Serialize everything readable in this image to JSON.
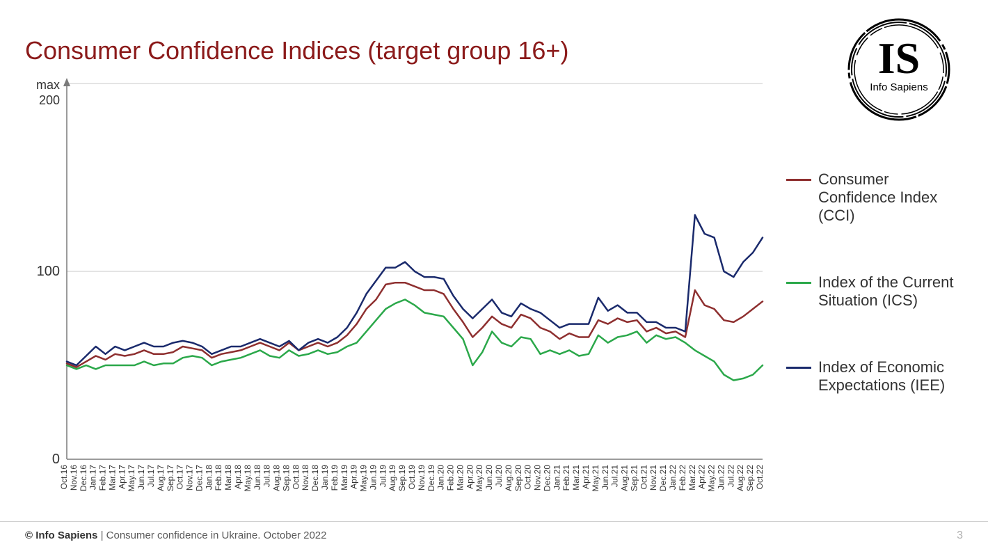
{
  "title": "Consumer Confidence Indices (target group 16+)",
  "title_color": "#8b1a1a",
  "title_fontsize": 36,
  "logo": {
    "text_top": "IS",
    "text_bottom": "Info Sapiens"
  },
  "footer": {
    "copyright_bold": "© Info Sapiens",
    "copyright_rest": " | Consumer confidence in Ukraine. October 2022",
    "page": "3"
  },
  "chart": {
    "type": "line",
    "background_color": "#ffffff",
    "grid_color": "#c8c8c8",
    "axis_color": "#7a7a7a",
    "ylim": [
      0,
      200
    ],
    "yticks": [
      0,
      100
    ],
    "ymax_label": "max\n200",
    "line_width": 2.5,
    "x_labels": [
      "Oct.16",
      "Nov.16",
      "Dec.16",
      "Jan.17",
      "Feb.17",
      "Mar.17",
      "Apr.17",
      "May.17",
      "Jun.17",
      "Jul.17",
      "Aug.17",
      "Sep.17",
      "Oct.17",
      "Nov.17",
      "Dec.17",
      "Jan.18",
      "Feb.18",
      "Mar.18",
      "Apr.18",
      "May.18",
      "Jun.18",
      "Jul.18",
      "Aug.18",
      "Sep.18",
      "Oct.18",
      "Nov.18",
      "Dec.18",
      "Jan.19",
      "Feb.19",
      "Mar.19",
      "Apr.19",
      "May.19",
      "Jun.19",
      "Jul.19",
      "Aug.19",
      "Sep.19",
      "Oct.19",
      "Nov.19",
      "Dec.19",
      "Jan.20",
      "Feb.20",
      "Mar.20",
      "Apr.20",
      "May.20",
      "Jun.20",
      "Jul.20",
      "Aug.20",
      "Sep.20",
      "Oct.20",
      "Nov.20",
      "Dec.20",
      "Jan.21",
      "Feb.21",
      "Mar.21",
      "Apr.21",
      "May.21",
      "Jun.21",
      "Jul.21",
      "Aug.21",
      "Sep.21",
      "Oct.21",
      "Nov.21",
      "Dec.21",
      "Jan.22",
      "Feb.22",
      "Mar.22",
      "Apr.22",
      "May.22",
      "Jun.22",
      "Jul.22",
      "Aug.22",
      "Sep.22",
      "Oct.22"
    ],
    "series": [
      {
        "name": "Consumer Confidence Index (CCI)",
        "short": "CCI",
        "color": "#8e2f2f",
        "values": [
          51,
          49,
          52,
          55,
          53,
          56,
          55,
          56,
          58,
          56,
          56,
          57,
          60,
          59,
          58,
          54,
          56,
          57,
          58,
          60,
          62,
          60,
          58,
          62,
          58,
          60,
          62,
          60,
          62,
          66,
          72,
          80,
          85,
          93,
          94,
          94,
          92,
          90,
          90,
          88,
          80,
          73,
          65,
          70,
          76,
          72,
          70,
          77,
          75,
          70,
          68,
          64,
          67,
          65,
          65,
          74,
          72,
          75,
          73,
          74,
          68,
          70,
          67,
          68,
          65,
          90,
          82,
          80,
          74,
          73,
          76,
          80,
          84
        ]
      },
      {
        "name": "Index of the Current Situation (ICS)",
        "short": "ICS",
        "color": "#2ba84a",
        "values": [
          50,
          48,
          50,
          48,
          50,
          50,
          50,
          50,
          52,
          50,
          51,
          51,
          54,
          55,
          54,
          50,
          52,
          53,
          54,
          56,
          58,
          55,
          54,
          58,
          55,
          56,
          58,
          56,
          57,
          60,
          62,
          68,
          74,
          80,
          83,
          85,
          82,
          78,
          77,
          76,
          70,
          64,
          50,
          57,
          68,
          62,
          60,
          65,
          64,
          56,
          58,
          56,
          58,
          55,
          56,
          66,
          62,
          65,
          66,
          68,
          62,
          66,
          64,
          65,
          62,
          58,
          55,
          52,
          45,
          42,
          43,
          45,
          50
        ]
      },
      {
        "name": "Index of Economic Expectations (IEE)",
        "short": "IEE",
        "color": "#1a2a6c",
        "values": [
          52,
          50,
          55,
          60,
          56,
          60,
          58,
          60,
          62,
          60,
          60,
          62,
          63,
          62,
          60,
          56,
          58,
          60,
          60,
          62,
          64,
          62,
          60,
          63,
          58,
          62,
          64,
          62,
          65,
          70,
          78,
          88,
          95,
          102,
          102,
          105,
          100,
          97,
          97,
          96,
          87,
          80,
          75,
          80,
          85,
          78,
          76,
          83,
          80,
          78,
          74,
          70,
          72,
          72,
          72,
          86,
          79,
          82,
          78,
          78,
          73,
          73,
          70,
          70,
          68,
          130,
          120,
          118,
          100,
          97,
          105,
          110,
          118
        ]
      }
    ]
  },
  "legend": {
    "items": [
      {
        "color": "#8e2f2f",
        "label": "Consumer Confidence Index (CCI)"
      },
      {
        "color": "#2ba84a",
        "label": "Index of the Current Situation (ICS)"
      },
      {
        "color": "#1a2a6c",
        "label": "Index of Economic Expectations (IEE)"
      }
    ],
    "fontsize": 22
  }
}
